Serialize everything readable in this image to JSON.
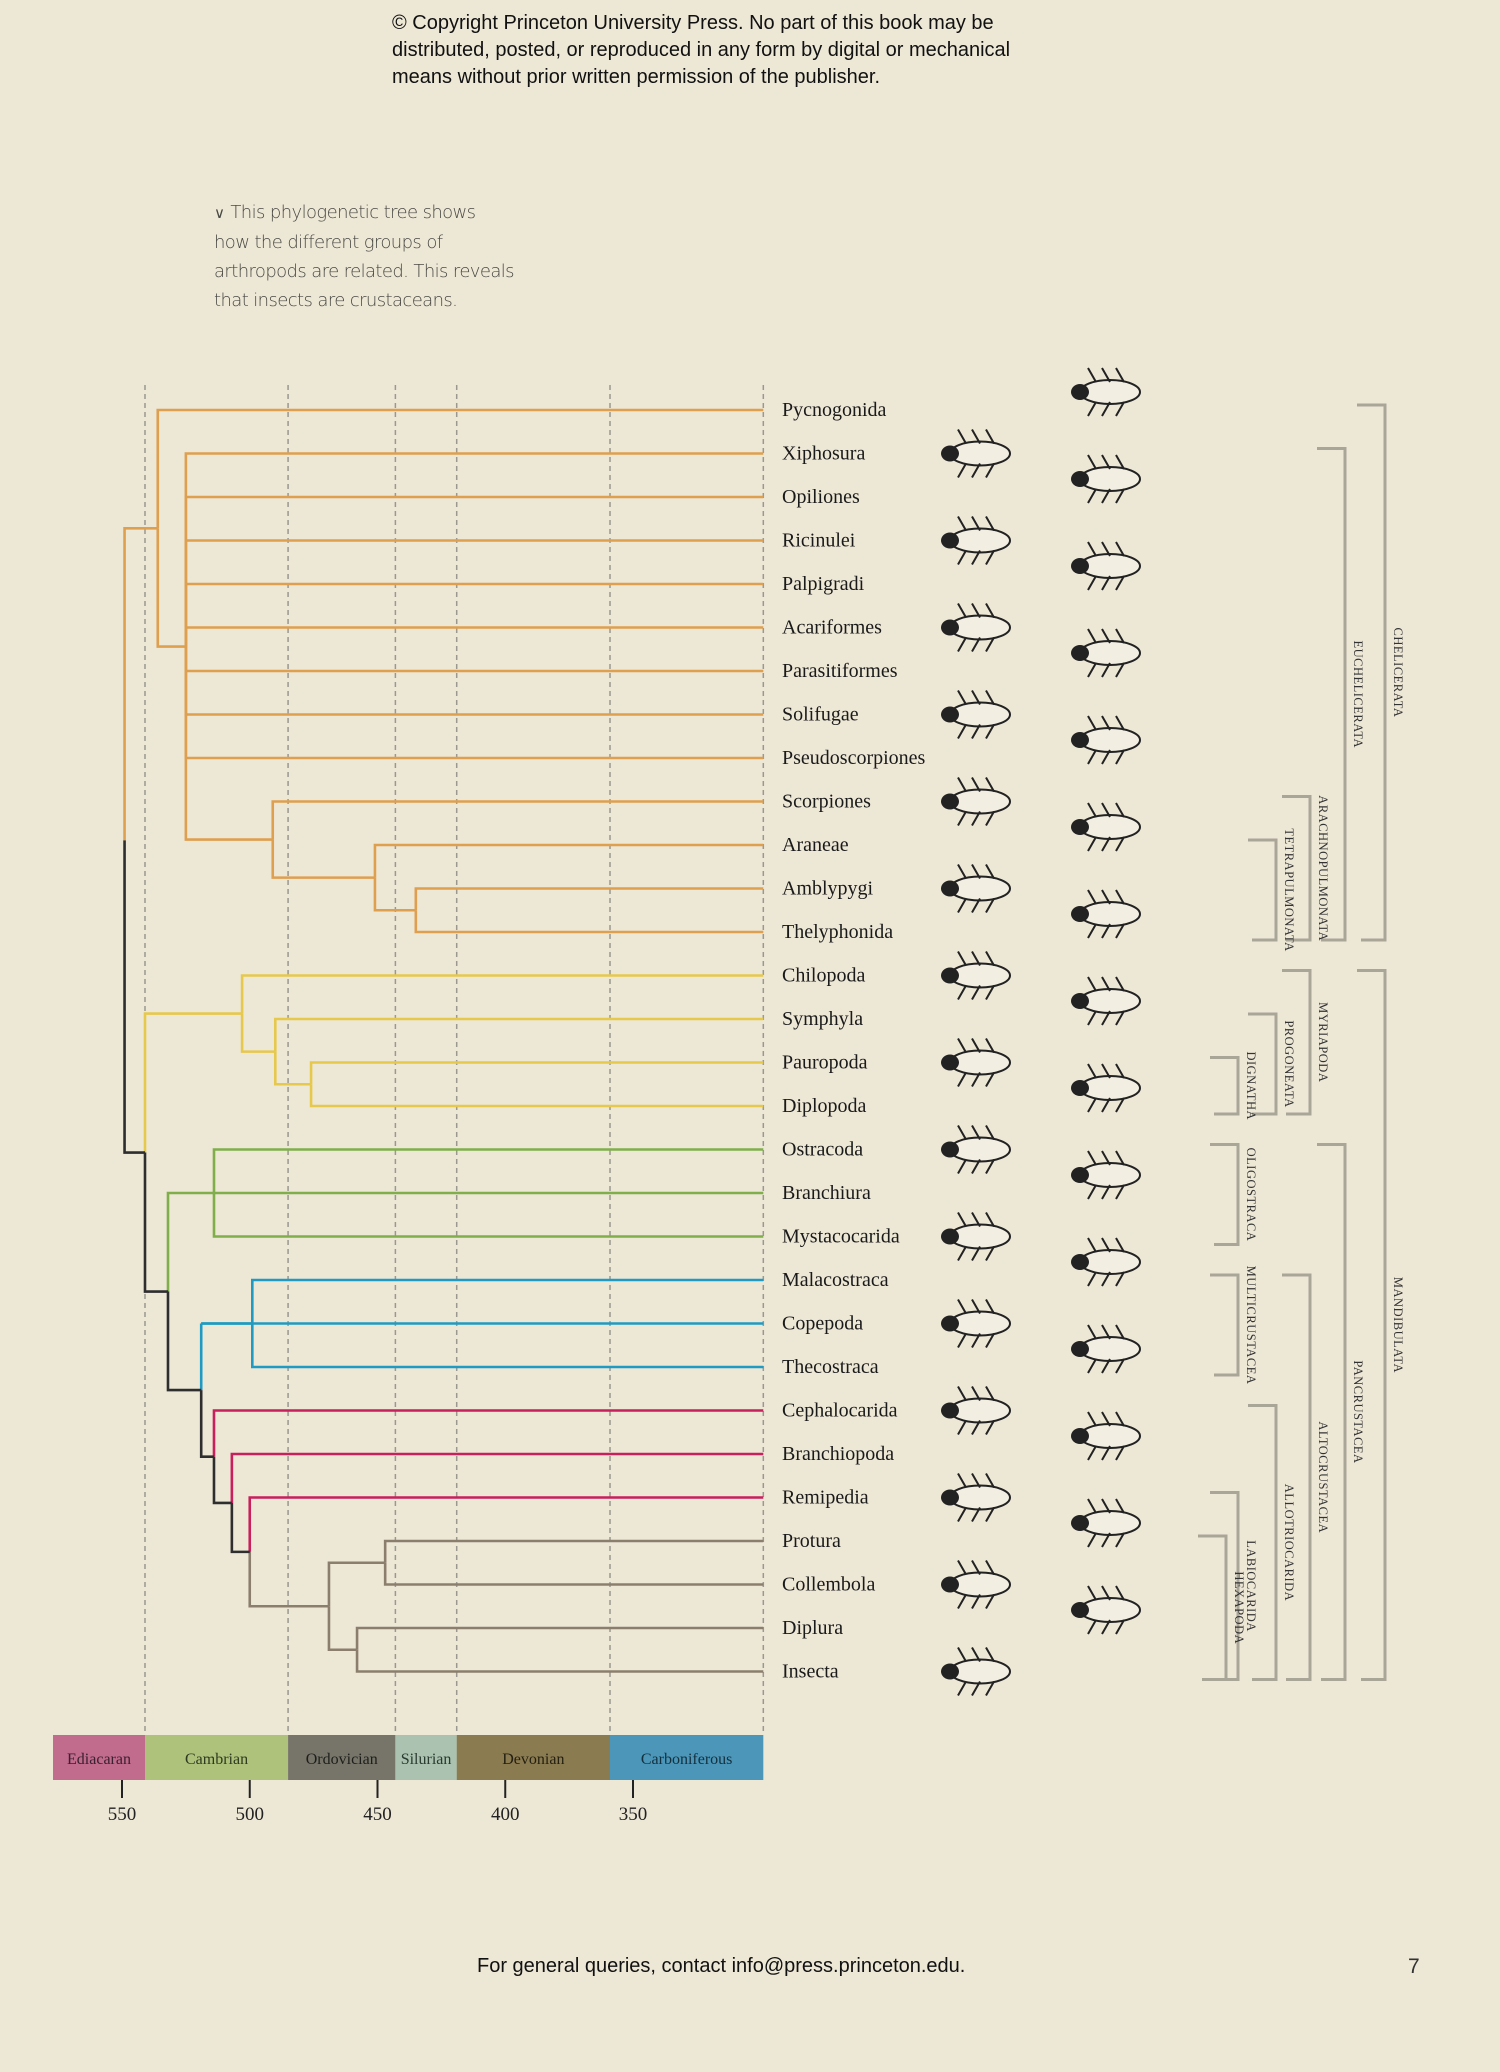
{
  "copyright": [
    "© Copyright Princeton University Press. No part of this book may be",
    "distributed, posted, or reproduced in any form by digital or mechanical",
    "means without prior written permission of the publisher."
  ],
  "caption": {
    "icon": "chevron-down-icon",
    "lines": [
      "This phylogenetic tree shows",
      "how the different groups of",
      "arthropods are related. This reveals",
      "that insects are crustaceans."
    ]
  },
  "footer": "For general queries, contact info@press.princeton.edu.",
  "page_number": "7",
  "chart_data": {
    "type": "tree",
    "time_axis_unit": "Ma",
    "xlim": [
      577,
      299
    ],
    "ticks": [
      550,
      500,
      450,
      400,
      350
    ],
    "tip_age": 299,
    "taxa": [
      "Pycnogonida",
      "Xiphosura",
      "Opiliones",
      "Ricinulei",
      "Palpigradi",
      "Acariformes",
      "Parasitiformes",
      "Solifugae",
      "Pseudoscorpiones",
      "Scorpiones",
      "Araneae",
      "Amblypygi",
      "Thelyphonida",
      "Chilopoda",
      "Symphyla",
      "Pauropoda",
      "Diplopoda",
      "Ostracoda",
      "Branchiura",
      "Mystacocarida",
      "Malacostraca",
      "Copepoda",
      "Thecostraca",
      "Cephalocarida",
      "Branchiopoda",
      "Remipedia",
      "Protura",
      "Collembola",
      "Diplura",
      "Insecta"
    ],
    "colors": {
      "chelicerata": "#de9f4f",
      "myriapoda": "#e6c94c",
      "oligostraca": "#7fae4a",
      "multicrustacea": "#1f9ac2",
      "basal": "#c81f5d",
      "hexapoda": "#8b7e6d",
      "stem": "#2e2e2e"
    },
    "tree": {
      "age": 549,
      "children": [
        {
          "age": 536,
          "color": "#de9f4f",
          "children": [
            {
              "tip": 0
            },
            {
              "age": 525,
              "children": [
                {
                  "tip": 1
                },
                {
                  "tip": 2
                },
                {
                  "tip": 3
                },
                {
                  "tip": 4
                },
                {
                  "tip": 5
                },
                {
                  "tip": 6
                },
                {
                  "tip": 7
                },
                {
                  "tip": 8
                },
                {
                  "age": 491,
                  "children": [
                    {
                      "tip": 9
                    },
                    {
                      "age": 451,
                      "children": [
                        {
                          "tip": 10
                        },
                        {
                          "age": 435,
                          "children": [
                            {
                              "tip": 11
                            },
                            {
                              "tip": 12
                            }
                          ]
                        }
                      ]
                    }
                  ]
                }
              ]
            }
          ]
        },
        {
          "age": 541,
          "color": "#2e2e2e",
          "children": [
            {
              "age": 503,
              "color": "#e6c94c",
              "children": [
                {
                  "tip": 13
                },
                {
                  "age": 490,
                  "children": [
                    {
                      "tip": 14
                    },
                    {
                      "age": 476,
                      "children": [
                        {
                          "tip": 15
                        },
                        {
                          "tip": 16
                        }
                      ]
                    }
                  ]
                }
              ]
            },
            {
              "age": 532,
              "children": [
                {
                  "age": 514,
                  "color": "#7fae4a",
                  "children": [
                    {
                      "tip": 17
                    },
                    {
                      "tip": 18
                    },
                    {
                      "tip": 19
                    }
                  ]
                },
                {
                  "age": 519,
                  "children": [
                    {
                      "age": 519,
                      "color": "#1f9ac2",
                      "children": [
                        {
                          "age": 499,
                          "children": [
                            {
                              "tip": 20
                            },
                            {
                              "tip": 22
                            }
                          ]
                        },
                        {
                          "tip": 21
                        }
                      ]
                    },
                    {
                      "age": 514,
                      "children": [
                        {
                          "tip": 23,
                          "color": "#c81f5d"
                        },
                        {
                          "age": 507,
                          "children": [
                            {
                              "tip": 24,
                              "color": "#c81f5d"
                            },
                            {
                              "age": 500,
                              "children": [
                                {
                                  "tip": 25,
                                  "color": "#c81f5d"
                                },
                                {
                                  "age": 469,
                                  "color": "#8b7e6d",
                                  "children": [
                                    {
                                      "age": 447,
                                      "children": [
                                        {
                                          "tip": 26
                                        },
                                        {
                                          "tip": 27
                                        }
                                      ]
                                    },
                                    {
                                      "age": 458,
                                      "children": [
                                        {
                                          "tip": 28
                                        },
                                        {
                                          "tip": 29
                                        }
                                      ]
                                    }
                                  ]
                                }
                              ]
                            }
                          ]
                        }
                      ]
                    }
                  ]
                }
              ]
            }
          ]
        }
      ]
    },
    "periods": [
      {
        "name": "Ediacaran",
        "start": 577,
        "end": 541,
        "color": "#c16b8d",
        "text": "#3a2030"
      },
      {
        "name": "Cambrian",
        "start": 541,
        "end": 485,
        "color": "#aec27b",
        "text": "#2f3a20"
      },
      {
        "name": "Ordovician",
        "start": 485,
        "end": 443,
        "color": "#77756a",
        "text": "#1e1e1a"
      },
      {
        "name": "Silurian",
        "start": 443,
        "end": 419,
        "color": "#aac2af",
        "text": "#2a3a30"
      },
      {
        "name": "Devonian",
        "start": 419,
        "end": 359,
        "color": "#8a7b51",
        "text": "#241f10"
      },
      {
        "name": "Carboniferous",
        "start": 359,
        "end": 299,
        "color": "#4b96b9",
        "text": "#13303e"
      }
    ],
    "clades": [
      {
        "name": "CHELICERATA",
        "from": 0,
        "to": 12,
        "level": 6
      },
      {
        "name": "EUCHELICERATA",
        "from": 1,
        "to": 12,
        "level": 5
      },
      {
        "name": "ARACHNOPULMONATA",
        "from": 9,
        "to": 12,
        "level": 4
      },
      {
        "name": "TETRAPULMONATA",
        "from": 10,
        "to": 12,
        "level": 3
      },
      {
        "name": "MANDIBULATA",
        "from": 13,
        "to": 29,
        "level": 6
      },
      {
        "name": "MYRIAPODA",
        "from": 13,
        "to": 16,
        "level": 4
      },
      {
        "name": "PROGONEATA",
        "from": 14,
        "to": 16,
        "level": 3
      },
      {
        "name": "DIGNATHA",
        "from": 15,
        "to": 16,
        "level": 2
      },
      {
        "name": "PANCRUSTACEA",
        "from": 17,
        "to": 29,
        "level": 5
      },
      {
        "name": "OLIGOSTRACA",
        "from": 17,
        "to": 19,
        "level": 2
      },
      {
        "name": "ALTOCRUSTACEA",
        "from": 20,
        "to": 29,
        "level": 4
      },
      {
        "name": "MULTICRUSTACEA",
        "from": 20,
        "to": 22,
        "level": 2
      },
      {
        "name": "ALLOTRIOCARIDA",
        "from": 23,
        "to": 29,
        "level": 3
      },
      {
        "name": "LABIOCARIDA",
        "from": 25,
        "to": 29,
        "level": 2
      },
      {
        "name": "HEXAPODA",
        "from": 26,
        "to": 29,
        "level": 1
      }
    ]
  }
}
